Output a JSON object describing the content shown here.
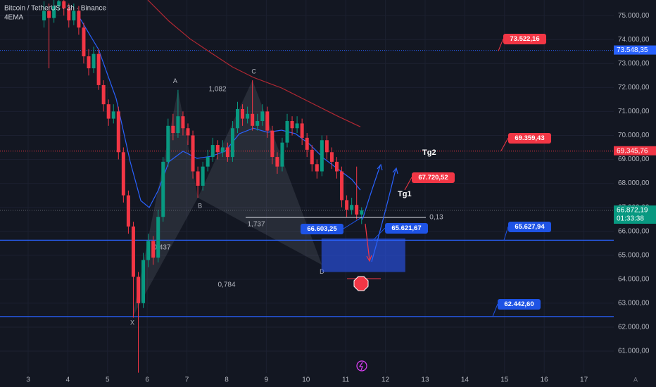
{
  "chart_data": {
    "type": "candlestick",
    "title": "Bitcoin / TetherUS · 3h · Binance",
    "subtitle": "4EMA",
    "up_color": "#089981",
    "down_color": "#f23645",
    "xlim": [
      2.291,
      17.752
    ],
    "ylim": [
      60090,
      75650
    ],
    "xticks": [
      3,
      4,
      5,
      6,
      7,
      8,
      9,
      10,
      11,
      12,
      13,
      14,
      15,
      16,
      17
    ],
    "yticks": [
      {
        "value": 75000,
        "label": "75.000,00"
      },
      {
        "value": 74000,
        "label": "74.000,00"
      },
      {
        "value": 73000,
        "label": "73.000,00"
      },
      {
        "value": 72000,
        "label": "72.000,00"
      },
      {
        "value": 71000,
        "label": "71.000,00"
      },
      {
        "value": 70000,
        "label": "70.000,00"
      },
      {
        "value": 69000,
        "label": "69.000,00"
      },
      {
        "value": 68000,
        "label": "68.000,00"
      },
      {
        "value": 67000,
        "label": "67.000,00"
      },
      {
        "value": 66000,
        "label": "66.000,00"
      },
      {
        "value": 65000,
        "label": "65.000,00"
      },
      {
        "value": 64000,
        "label": "64.000,00"
      },
      {
        "value": 63000,
        "label": "63.000,00"
      },
      {
        "value": 62000,
        "label": "62.000,00"
      },
      {
        "value": 61000,
        "label": "61.000,00"
      }
    ],
    "x": [
      3.4,
      3.525,
      3.65,
      3.775,
      3.9,
      4.025,
      4.15,
      4.275,
      4.4,
      4.525,
      4.65,
      4.775,
      4.9,
      5.025,
      5.15,
      5.275,
      5.4,
      5.525,
      5.65,
      5.775,
      5.9,
      6.025,
      6.15,
      6.275,
      6.4,
      6.525,
      6.65,
      6.775,
      6.9,
      7.025,
      7.15,
      7.275,
      7.4,
      7.525,
      7.65,
      7.775,
      7.9,
      8.025,
      8.15,
      8.275,
      8.4,
      8.525,
      8.65,
      8.775,
      8.9,
      9.025,
      9.15,
      9.275,
      9.4,
      9.525,
      9.65,
      9.775,
      9.9,
      10.025,
      10.15,
      10.275,
      10.4,
      10.525,
      10.65,
      10.775,
      10.9,
      11.025,
      11.15,
      11.275,
      11.4
    ],
    "open": [
      74800,
      75200,
      74900,
      75400,
      75600,
      75300,
      74800,
      75200,
      74500,
      73300,
      72800,
      73400,
      72100,
      71300,
      70700,
      71000,
      69300,
      67500,
      66200,
      64100,
      63000,
      64800,
      65600,
      64900,
      66600,
      68900,
      70400,
      70100,
      70800,
      70300,
      70000,
      68500,
      67900,
      68700,
      69100,
      69600,
      69300,
      69500,
      69100,
      70300,
      71100,
      70700,
      70900,
      70400,
      70600,
      71000,
      70200,
      69100,
      68700,
      69700,
      70600,
      70300,
      70500,
      69900,
      69400,
      68800,
      68500,
      69800,
      69300,
      68900,
      68500,
      67300,
      66900,
      67100,
      66700
    ],
    "high": [
      75600,
      75500,
      75700,
      75900,
      75800,
      75500,
      75500,
      75400,
      74700,
      73600,
      73700,
      73600,
      72300,
      71500,
      71300,
      71200,
      69500,
      67700,
      66400,
      64300,
      65100,
      65900,
      65800,
      66900,
      69100,
      70700,
      70900,
      71900,
      71000,
      70500,
      70200,
      68700,
      68900,
      69400,
      69900,
      69800,
      69800,
      69700,
      70600,
      71400,
      71300,
      71200,
      72300,
      70900,
      71300,
      71200,
      70400,
      69300,
      69900,
      70900,
      70800,
      70800,
      70700,
      70100,
      69600,
      69000,
      70000,
      70000,
      69500,
      69100,
      68700,
      67500,
      67400,
      68700,
      67000
    ],
    "low": [
      74500,
      72800,
      74700,
      75200,
      75000,
      74500,
      74600,
      74200,
      73000,
      72500,
      72600,
      71900,
      71000,
      70400,
      70500,
      69000,
      67200,
      65900,
      62400,
      60100,
      62800,
      64500,
      64600,
      64700,
      66400,
      68700,
      69800,
      69900,
      70000,
      69600,
      68200,
      67400,
      67700,
      68500,
      68900,
      69000,
      69100,
      68900,
      68900,
      70100,
      70400,
      70500,
      70200,
      70200,
      70400,
      69900,
      68800,
      68400,
      68500,
      69500,
      70000,
      70100,
      69600,
      69100,
      68500,
      68200,
      68300,
      69000,
      68600,
      68200,
      67000,
      66600,
      66700,
      66500,
      66300
    ],
    "close": [
      75200,
      74900,
      75400,
      75600,
      75300,
      74800,
      75200,
      74500,
      73300,
      72800,
      73400,
      72100,
      71300,
      70700,
      71000,
      69300,
      67500,
      66200,
      64100,
      63000,
      64800,
      65600,
      64900,
      66600,
      68900,
      70400,
      70100,
      70800,
      70300,
      70000,
      68500,
      67900,
      68700,
      69100,
      69600,
      69300,
      69500,
      69100,
      70300,
      71100,
      70700,
      70900,
      70400,
      70600,
      71000,
      70200,
      69100,
      68700,
      69700,
      70600,
      70300,
      70500,
      69900,
      69400,
      68800,
      68500,
      69800,
      69300,
      68900,
      68500,
      67300,
      66900,
      67100,
      66700,
      66870
    ],
    "lines": [
      {
        "color": "#b22833",
        "x": [
          6.014,
          6.546,
          7.078,
          7.61,
          8.142,
          8.674,
          9.383,
          10.092,
          10.801,
          11.369
        ],
        "values": [
          75650,
          74770,
          74030,
          73440,
          72860,
          72420,
          71980,
          71390,
          70800,
          70360
        ]
      },
      {
        "color": "#2962ff",
        "x": [
          4.241,
          4.773,
          5.216,
          5.571,
          5.837,
          6.05,
          6.28,
          6.546,
          6.901,
          7.255,
          7.61,
          7.965,
          8.319,
          8.674,
          9.028,
          9.383,
          9.738,
          10.092,
          10.447,
          10.801,
          11.156,
          11.369
        ],
        "values": [
          75060,
          73590,
          71540,
          68900,
          67280,
          66990,
          67720,
          68900,
          69340,
          69040,
          69130,
          69340,
          70070,
          70300,
          70130,
          70220,
          70070,
          69630,
          69040,
          68600,
          68160,
          67720
        ]
      }
    ],
    "levels": [
      {
        "value": 73548.35,
        "label": "73.548,35",
        "color": "#2962ff"
      },
      {
        "value": 69345.76,
        "label": "69.345,76",
        "color": "#f23645"
      },
      {
        "value": 66872.19,
        "label": "66.872,19",
        "color": "#089981"
      },
      {
        "value": 65627.94,
        "color": "#2962ff"
      },
      {
        "value": 62442.6,
        "color": "#2962ff"
      }
    ],
    "countdown": "01:33:38",
    "callouts": [
      {
        "value": 73522.16,
        "label": "73.522,16",
        "color": "#f23645"
      },
      {
        "value": 69359.43,
        "label": "69.359,43",
        "color": "#f23645"
      },
      {
        "value": 67720.52,
        "label": "67.720,52",
        "color": "#f23645"
      },
      {
        "value": 65621.67,
        "label": "65.621,67",
        "color": "#1e53e5"
      },
      {
        "value": 65627.94,
        "label": "65.627,94",
        "color": "#1e53e5"
      },
      {
        "value": 62442.6,
        "label": "62.442,60",
        "color": "#1e53e5"
      },
      {
        "value": 66603.25,
        "label": "66.603,25",
        "color": "#1e53e5"
      }
    ],
    "pattern": [
      {
        "label": "X",
        "x": 5.624,
        "y": 62400
      },
      {
        "label": "A",
        "x": 6.775,
        "y": 71900
      },
      {
        "label": "B",
        "x": 7.275,
        "y": 67400
      },
      {
        "label": "C",
        "x": 8.65,
        "y": 72300
      },
      {
        "label": "D",
        "x": 10.4,
        "y": 64600
      }
    ],
    "zone": {
      "x": [
        10.39,
        12.5
      ],
      "y": [
        64300,
        65700
      ]
    },
    "ratios": [
      "1,082",
      "1,737",
      "0,437",
      "0,784",
      "0,13"
    ],
    "targets": [
      "Tg2",
      "Tg1"
    ],
    "auto_button": "A"
  }
}
